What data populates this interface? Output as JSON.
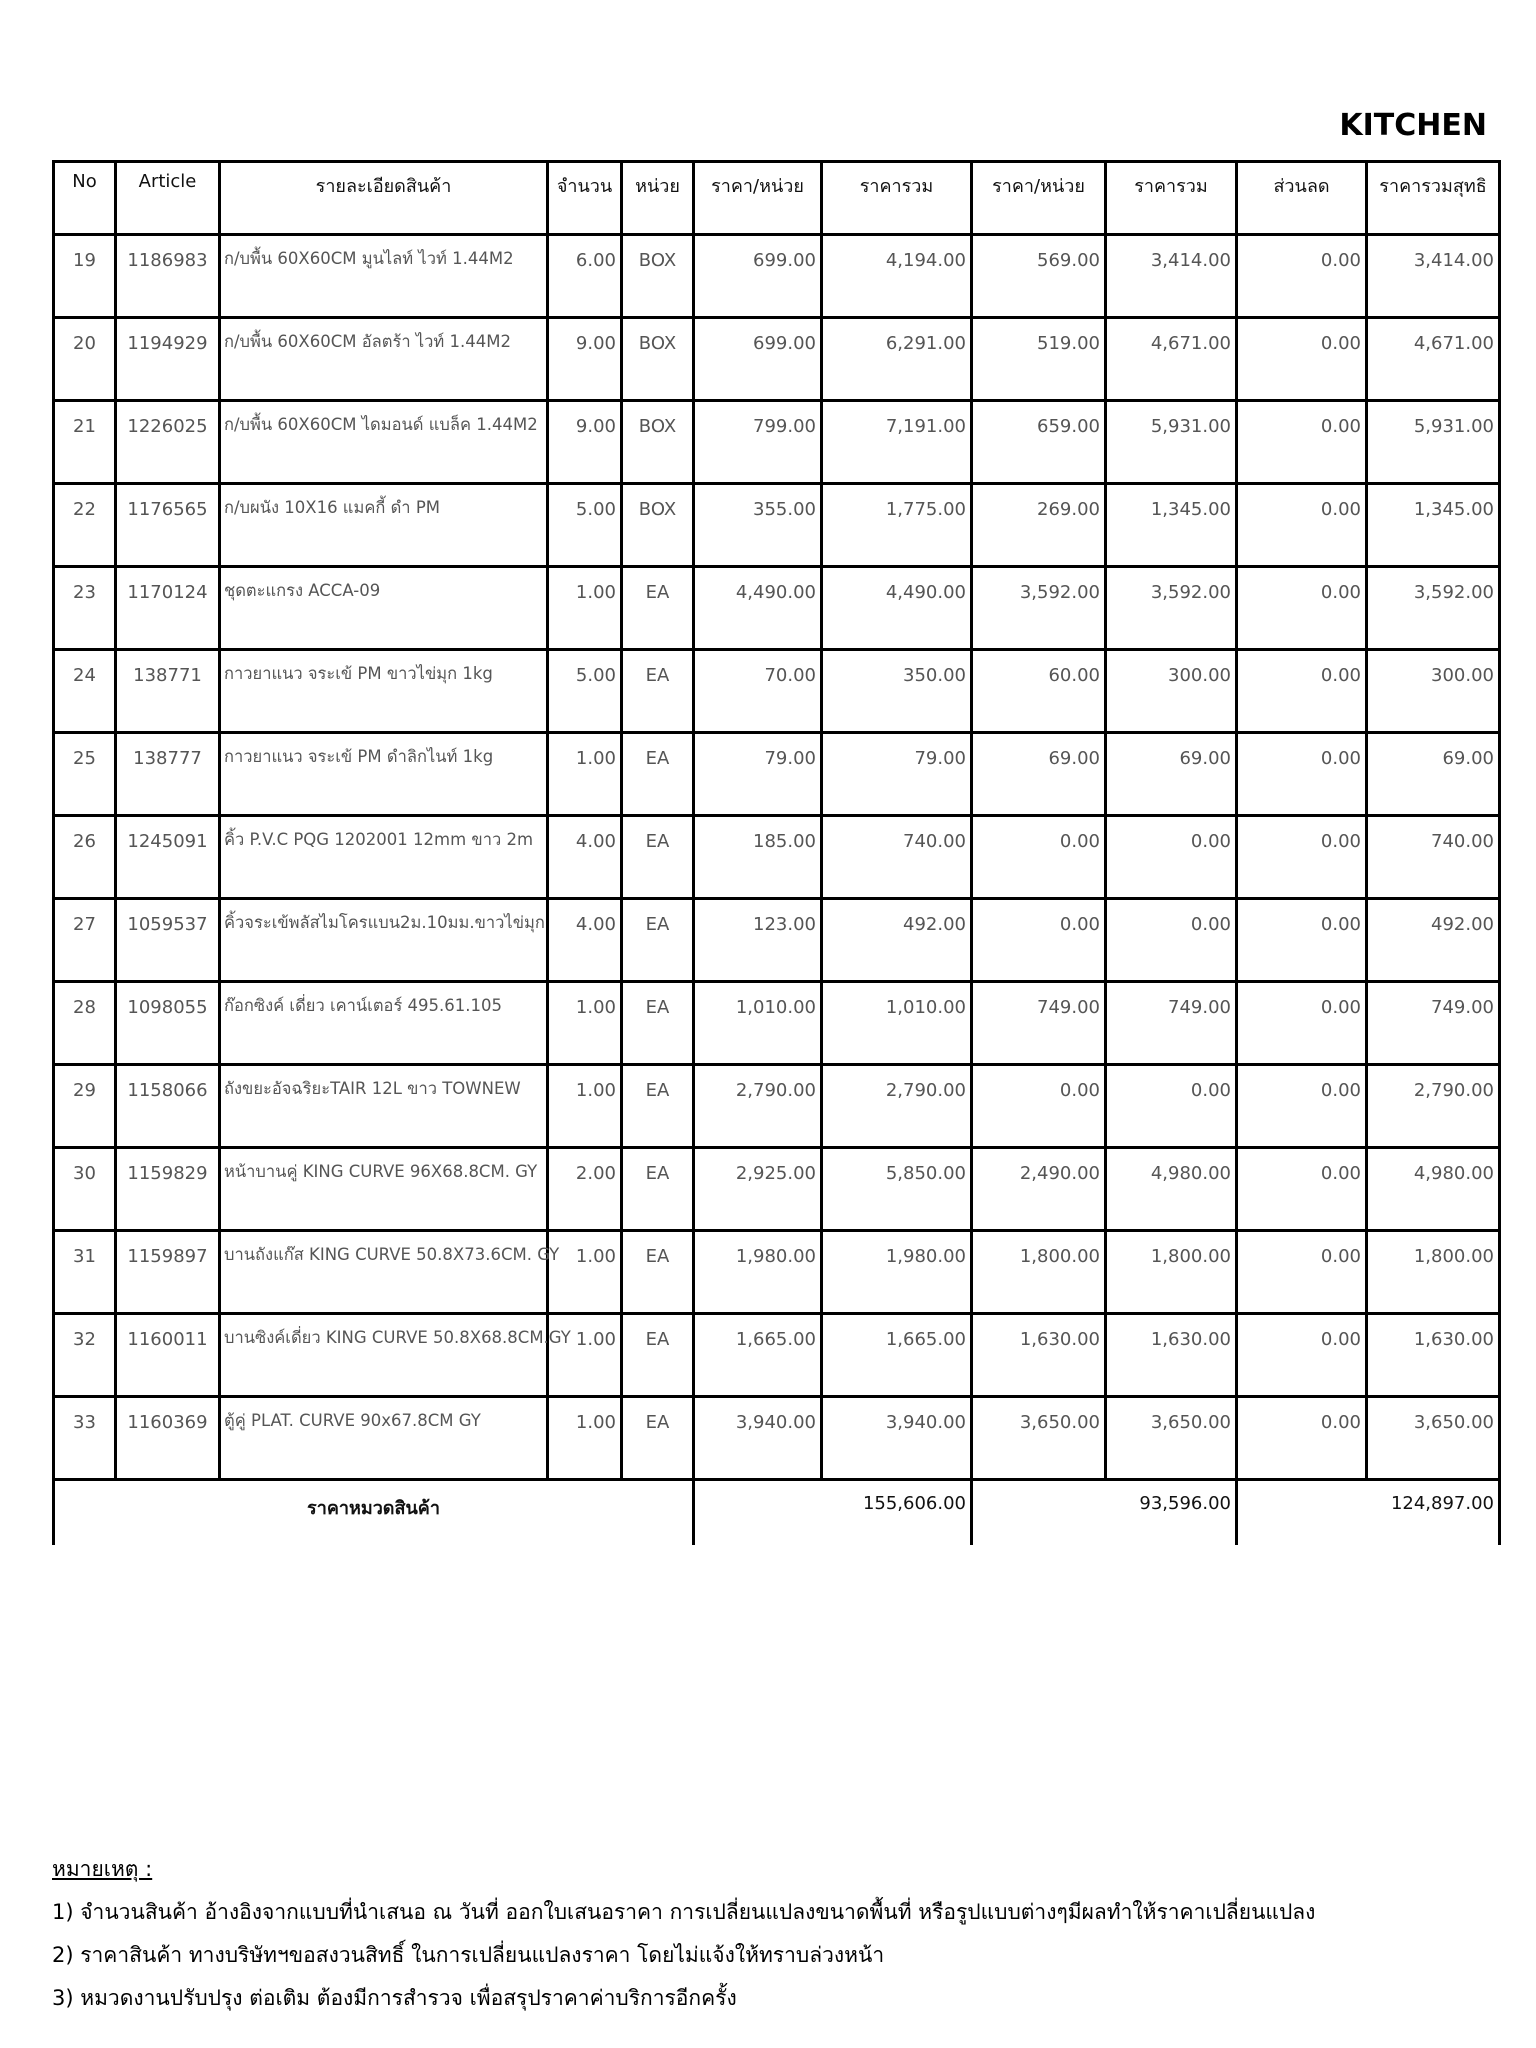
{
  "title": "KITCHEN",
  "columns": [
    "No",
    "Article",
    "รายละเอียดสินค้า",
    "จำนวน",
    "หน่วย",
    "ราคา/หน่วย",
    "ราคารวม",
    "ราคา/หน่วย",
    "ราคารวม",
    "ส่วนลด",
    "ราคารวมสุทธิ"
  ],
  "rows": [
    [
      "19",
      "1186983",
      "ก/บพื้น 60X60CM มูนไลท์ ไวท์ 1.44M2",
      "6.00",
      "BOX",
      "699.00",
      "4,194.00",
      "569.00",
      "3,414.00",
      "0.00",
      "3,414.00"
    ],
    [
      "20",
      "1194929",
      "ก/บพื้น 60X60CM อัลตร้า ไวท์ 1.44M2",
      "9.00",
      "BOX",
      "699.00",
      "6,291.00",
      "519.00",
      "4,671.00",
      "0.00",
      "4,671.00"
    ],
    [
      "21",
      "1226025",
      "ก/บพื้น 60X60CM ไดมอนด์ แบล็ค 1.44M2",
      "9.00",
      "BOX",
      "799.00",
      "7,191.00",
      "659.00",
      "5,931.00",
      "0.00",
      "5,931.00"
    ],
    [
      "22",
      "1176565",
      "ก/บผนัง 10X16 แมคกี้ ดำ PM",
      "5.00",
      "BOX",
      "355.00",
      "1,775.00",
      "269.00",
      "1,345.00",
      "0.00",
      "1,345.00"
    ],
    [
      "23",
      "1170124",
      "ชุดตะแกรง  ACCA-09",
      "1.00",
      "EA",
      "4,490.00",
      "4,490.00",
      "3,592.00",
      "3,592.00",
      "0.00",
      "3,592.00"
    ],
    [
      "24",
      "138771",
      "กาวยาแนว จระเข้ PM ขาวไข่มุก 1kg",
      "5.00",
      "EA",
      "70.00",
      "350.00",
      "60.00",
      "300.00",
      "0.00",
      "300.00"
    ],
    [
      "25",
      "138777",
      "กาวยาแนว จระเข้ PM ดำลิกไนท์ 1kg",
      "1.00",
      "EA",
      "79.00",
      "79.00",
      "69.00",
      "69.00",
      "0.00",
      "69.00"
    ],
    [
      "26",
      "1245091",
      "คิ้ว P.V.C PQG 1202001 12mm ขาว 2m",
      "4.00",
      "EA",
      "185.00",
      "740.00",
      "0.00",
      "0.00",
      "0.00",
      "740.00"
    ],
    [
      "27",
      "1059537",
      "คิ้วจระเข้พลัสไมโครแบน2ม.10มม.ขาวไข่มุก",
      "4.00",
      "EA",
      "123.00",
      "492.00",
      "0.00",
      "0.00",
      "0.00",
      "492.00"
    ],
    [
      "28",
      "1098055",
      "ก๊อกซิงค์ เดี่ยว เคาน์เตอร์ 495.61.105",
      "1.00",
      "EA",
      "1,010.00",
      "1,010.00",
      "749.00",
      "749.00",
      "0.00",
      "749.00"
    ],
    [
      "29",
      "1158066",
      "ถังขยะอัจฉริยะTAIR 12L ขาว TOWNEW",
      "1.00",
      "EA",
      "2,790.00",
      "2,790.00",
      "0.00",
      "0.00",
      "0.00",
      "2,790.00"
    ],
    [
      "30",
      "1159829",
      "หน้าบานคู่ KING CURVE 96X68.8CM. GY",
      "2.00",
      "EA",
      "2,925.00",
      "5,850.00",
      "2,490.00",
      "4,980.00",
      "0.00",
      "4,980.00"
    ],
    [
      "31",
      "1159897",
      "บานถังแก๊ส KING CURVE 50.8X73.6CM. GY",
      "1.00",
      "EA",
      "1,980.00",
      "1,980.00",
      "1,800.00",
      "1,800.00",
      "0.00",
      "1,800.00"
    ],
    [
      "32",
      "1160011",
      "บานซิงค์เดี่ยว KING CURVE 50.8X68.8CM.GY",
      "1.00",
      "EA",
      "1,665.00",
      "1,665.00",
      "1,630.00",
      "1,630.00",
      "0.00",
      "1,630.00"
    ],
    [
      "33",
      "1160369",
      "ตู้คู่ PLAT. CURVE 90x67.8CM GY",
      "1.00",
      "EA",
      "3,940.00",
      "3,940.00",
      "3,650.00",
      "3,650.00",
      "0.00",
      "3,650.00"
    ]
  ],
  "total": {
    "label": "ราคาหมวดสินค้า",
    "sum1": "155,606.00",
    "sum2": "93,596.00",
    "sum3": "124,897.00"
  },
  "notes": {
    "heading": "หมายเหตุ :",
    "items": [
      "1) จำนวนสินค้า อ้างอิงจากแบบที่นำเสนอ ณ วันที่ ออกใบเสนอราคา การเปลี่ยนแปลงขนาดพื้นที่ หรือรูปแบบต่างๆมีผลทำให้ราคาเปลี่ยนแปลง",
      "2) ราคาสินค้า ทางบริษัทฯขอสงวนสิทธิ์ ในการเปลี่ยนแปลงราคา โดยไม่แจ้งให้ทราบล่วงหน้า",
      "3) หมวดงานปรับปรุง ต่อเติม ต้องมีการสำรวจ เพื่อสรุปราคาค่าบริการอีกครั้ง"
    ]
  }
}
